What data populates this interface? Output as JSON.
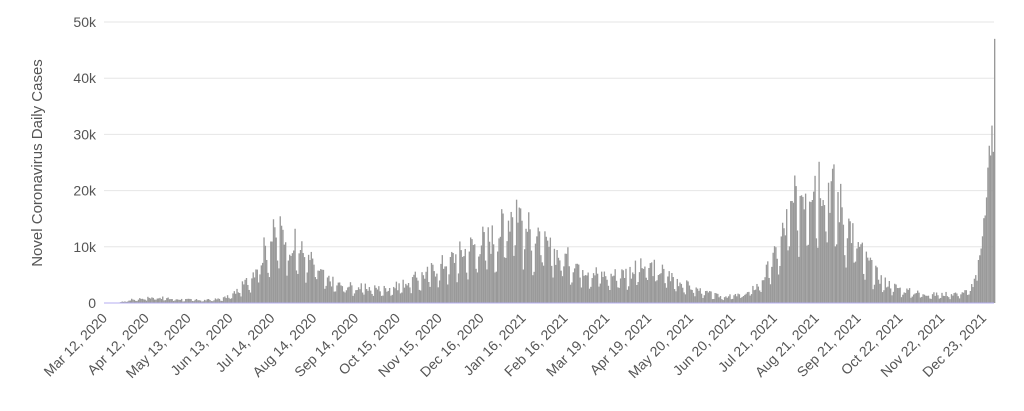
{
  "chart_data": {
    "type": "bar",
    "title": "",
    "xlabel": "",
    "ylabel": "Novel Coronavirus Daily Cases",
    "ylim": [
      0,
      50000
    ],
    "y_ticks": [
      0,
      10000,
      20000,
      30000,
      40000,
      50000
    ],
    "y_tick_labels": [
      "0",
      "10k",
      "20k",
      "30k",
      "40k",
      "50k"
    ],
    "x_range": [
      "2020-03-12",
      "2021-12-31"
    ],
    "x_tick_dates": [
      "2020-03-12",
      "2020-04-12",
      "2020-05-13",
      "2020-06-13",
      "2020-07-14",
      "2020-08-14",
      "2020-09-14",
      "2020-10-15",
      "2020-11-15",
      "2020-12-16",
      "2021-01-16",
      "2021-02-16",
      "2021-03-19",
      "2021-04-19",
      "2021-05-20",
      "2021-06-20",
      "2021-07-21",
      "2021-08-21",
      "2021-09-21",
      "2021-10-22",
      "2021-11-22",
      "2021-12-23"
    ],
    "x_tick_labels": [
      "Mar 12, 2020",
      "Apr 12, 2020",
      "May 13, 2020",
      "Jun 13, 2020",
      "Jul 14, 2020",
      "Aug 14, 2020",
      "Sep 14, 2020",
      "Oct 15, 2020",
      "Nov 15, 2020",
      "Dec 16, 2020",
      "Jan 16, 2021",
      "Feb 16, 2021",
      "Mar 19, 2021",
      "Apr 19, 2021",
      "May 20, 2021",
      "Jun 20, 2021",
      "Jul 21, 2021",
      "Aug 21, 2021",
      "Sep 21, 2021",
      "Oct 22, 2021",
      "Nov 22, 2021",
      "Dec 23, 2021"
    ],
    "grid": true,
    "legend": "none",
    "bar_color": "#999999",
    "series": [
      {
        "points": [
          [
            "2020-03-12",
            0
          ],
          [
            "2020-03-20",
            0
          ],
          [
            "2020-03-27",
            300
          ],
          [
            "2020-04-01",
            600
          ],
          [
            "2020-04-12",
            900
          ],
          [
            "2020-04-20",
            1000
          ],
          [
            "2020-05-01",
            700
          ],
          [
            "2020-05-13",
            600
          ],
          [
            "2020-05-25",
            500
          ],
          [
            "2020-06-05",
            700
          ],
          [
            "2020-06-13",
            1200
          ],
          [
            "2020-06-20",
            2500
          ],
          [
            "2020-06-28",
            4500
          ],
          [
            "2020-07-05",
            8000
          ],
          [
            "2020-07-14",
            11500
          ],
          [
            "2020-07-20",
            12500
          ],
          [
            "2020-07-28",
            11000
          ],
          [
            "2020-08-05",
            9000
          ],
          [
            "2020-08-14",
            7000
          ],
          [
            "2020-08-22",
            4500
          ],
          [
            "2020-09-01",
            3200
          ],
          [
            "2020-09-14",
            2800
          ],
          [
            "2020-09-25",
            2600
          ],
          [
            "2020-10-05",
            2500
          ],
          [
            "2020-10-15",
            3000
          ],
          [
            "2020-10-25",
            4000
          ],
          [
            "2020-11-05",
            5200
          ],
          [
            "2020-11-15",
            6500
          ],
          [
            "2020-11-25",
            8000
          ],
          [
            "2020-12-05",
            9500
          ],
          [
            "2020-12-16",
            11000
          ],
          [
            "2020-12-26",
            11500
          ],
          [
            "2021-01-05",
            15000
          ],
          [
            "2021-01-10",
            18500
          ],
          [
            "2021-01-16",
            14000
          ],
          [
            "2021-01-25",
            11000
          ],
          [
            "2021-02-05",
            9500
          ],
          [
            "2021-02-16",
            8000
          ],
          [
            "2021-02-28",
            6500
          ],
          [
            "2021-03-10",
            5500
          ],
          [
            "2021-03-19",
            4800
          ],
          [
            "2021-03-30",
            5200
          ],
          [
            "2021-04-10",
            6000
          ],
          [
            "2021-04-19",
            6500
          ],
          [
            "2021-04-30",
            5500
          ],
          [
            "2021-05-10",
            4000
          ],
          [
            "2021-05-20",
            2800
          ],
          [
            "2021-06-01",
            1800
          ],
          [
            "2021-06-10",
            1200
          ],
          [
            "2021-06-20",
            1200
          ],
          [
            "2021-07-01",
            1700
          ],
          [
            "2021-07-10",
            3500
          ],
          [
            "2021-07-21",
            8000
          ],
          [
            "2021-07-31",
            15000
          ],
          [
            "2021-08-08",
            19000
          ],
          [
            "2021-08-15",
            22000
          ],
          [
            "2021-08-21",
            23000
          ],
          [
            "2021-08-27",
            22500
          ],
          [
            "2021-09-05",
            19000
          ],
          [
            "2021-09-14",
            14000
          ],
          [
            "2021-09-21",
            10000
          ],
          [
            "2021-10-01",
            6000
          ],
          [
            "2021-10-10",
            3800
          ],
          [
            "2021-10-22",
            2500
          ],
          [
            "2021-11-01",
            1900
          ],
          [
            "2021-11-15",
            1500
          ],
          [
            "2021-11-22",
            1500
          ],
          [
            "2021-12-01",
            1700
          ],
          [
            "2021-12-10",
            2000
          ],
          [
            "2021-12-16",
            3500
          ],
          [
            "2021-12-20",
            8000
          ],
          [
            "2021-12-23",
            15000
          ],
          [
            "2021-12-26",
            23000
          ],
          [
            "2021-12-28",
            30000
          ],
          [
            "2021-12-29",
            32000
          ],
          [
            "2021-12-30",
            28000
          ],
          [
            "2021-12-31",
            47000
          ]
        ]
      }
    ]
  }
}
